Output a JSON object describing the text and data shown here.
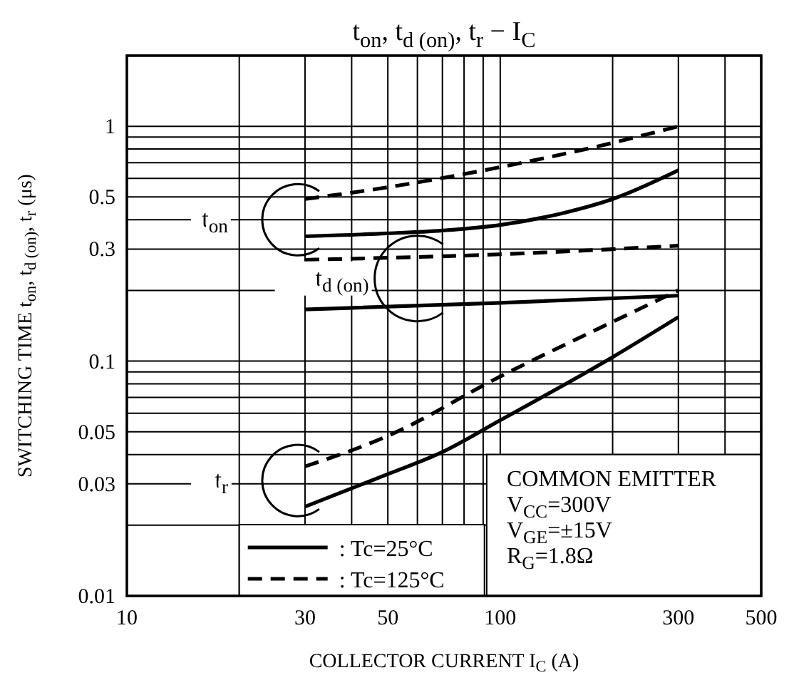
{
  "chart_data": {
    "type": "line",
    "title": "t$_{on}$, t$_{d (on)}$, t$_{r}$ − I$_{C}$",
    "xlabel": "COLLECTOR CURRENT   I$_{C}$   (A)",
    "ylabel": "SWITCHING TIME   t$_{on}$, t$_{d (on)}$, t$_{r}$   (μs)",
    "log": "xy",
    "grid": true,
    "legend": "bottom left",
    "xlim": [
      10,
      500
    ],
    "xticks": [
      10,
      {
        "value": 20,
        "label": null
      },
      30,
      {
        "value": 40,
        "label": null
      },
      50,
      {
        "value": 60,
        "label": null
      },
      {
        "value": 70,
        "label": null
      },
      {
        "value": 80,
        "label": null
      },
      {
        "value": 90,
        "label": null
      },
      100,
      {
        "value": 200,
        "label": null
      },
      300,
      {
        "value": 400,
        "label": null
      },
      500
    ],
    "ylim": [
      0.01,
      2
    ],
    "yticks": [
      0.01,
      {
        "value": 0.02,
        "label": null
      },
      0.03,
      {
        "value": 0.04,
        "label": null
      },
      0.05,
      {
        "value": 0.06,
        "label": null
      },
      {
        "value": 0.07,
        "label": null
      },
      {
        "value": 0.08,
        "label": null
      },
      {
        "value": 0.09,
        "label": null
      },
      0.1,
      {
        "value": 0.2,
        "label": null
      },
      0.3,
      {
        "value": 0.4,
        "label": null
      },
      0.5,
      {
        "value": 0.6,
        "label": null
      },
      {
        "value": 0.7,
        "label": null
      },
      {
        "value": 0.8,
        "label": null
      },
      {
        "value": 0.9,
        "label": null
      },
      1
    ],
    "series": [
      {
        "name": ": Tc=25°C",
        "color": "#000000",
        "line_style": "solid",
        "x": [
          30,
          50,
          70,
          100,
          150,
          200,
          300
        ],
        "values": [
          0.34,
          0.35,
          0.36,
          0.38,
          0.43,
          0.49,
          0.65
        ]
      },
      {
        "name": ": Tc=125°C",
        "color": "#000000",
        "line_style": "dashed",
        "x": [
          30,
          50,
          100,
          200,
          300
        ],
        "values": [
          0.49,
          0.55,
          0.67,
          0.85,
          1.0
        ]
      },
      {
        "color": "#000000",
        "line_style": "dashed",
        "x": [
          30,
          100,
          300
        ],
        "values": [
          0.27,
          0.285,
          0.31
        ]
      },
      {
        "color": "#000000",
        "line_style": "solid",
        "x": [
          30,
          100,
          300
        ],
        "values": [
          0.166,
          0.177,
          0.19
        ]
      },
      {
        "color": "#000000",
        "line_style": "dashed",
        "x": [
          30,
          50,
          100,
          200,
          300
        ],
        "values": [
          0.0356,
          0.048,
          0.086,
          0.147,
          0.2
        ]
      },
      {
        "color": "#000000",
        "line_style": "solid",
        "x": [
          30,
          50,
          70,
          100,
          200,
          300
        ],
        "values": [
          0.024,
          0.033,
          0.041,
          0.056,
          0.104,
          0.154
        ]
      }
    ],
    "annotations": [
      "t$_{on}$",
      {
        "text": "t$_{d (on)}$",
        "x": 60,
        "y": 0.17
      },
      "t$_{r}$",
      "COMMON EMITTER",
      "V$_{CC}$=300V",
      "V$_{GE}$=±15V",
      "R$_{G}$=1.8Ω"
    ]
  }
}
